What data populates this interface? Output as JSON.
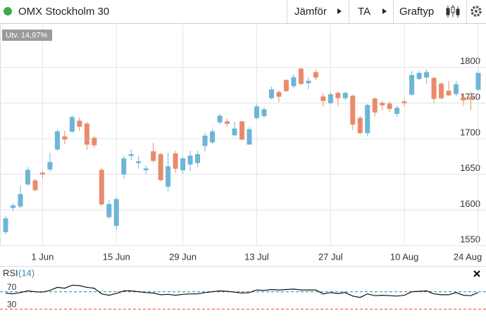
{
  "toolbar": {
    "title": "OMX Stockholm 30",
    "buttons": [
      "Jämför",
      "TA",
      "Graftyp"
    ]
  },
  "badge": "Utv. 14,97%",
  "chart_data": [
    {
      "type": "candlestick",
      "categories": [
        null,
        null,
        null,
        null,
        null,
        "1 Jun",
        null,
        null,
        null,
        null,
        null,
        null,
        null,
        null,
        null,
        "15 Jun",
        null,
        null,
        null,
        null,
        null,
        null,
        null,
        null,
        "29 Jun",
        null,
        null,
        null,
        null,
        null,
        null,
        null,
        null,
        null,
        "13 Jul",
        null,
        null,
        null,
        null,
        null,
        null,
        null,
        null,
        null,
        "27 Jul",
        null,
        null,
        null,
        null,
        null,
        null,
        null,
        null,
        null,
        "10 Aug",
        null,
        null,
        null,
        null,
        null,
        null,
        null,
        null,
        null,
        "24 Aug"
      ],
      "open": [
        1569,
        1603,
        1605,
        1636,
        1641,
        1652,
        1657,
        1685,
        1703,
        1710,
        1725,
        1721,
        1701,
        1656,
        1590,
        1578,
        1650,
        1676,
        1666,
        1656,
        1682,
        1678,
        1633,
        1679,
        1656,
        1664,
        1666,
        1690,
        1695,
        1723,
        1724,
        1705,
        1724,
        1692,
        1729,
        1732,
        1757,
        1765,
        1782,
        1774,
        1798,
        1778,
        1793,
        1759,
        1750,
        1764,
        1757,
        1760,
        1729,
        1708,
        1756,
        1750,
        1749,
        1735,
        1752,
        1762,
        1784,
        1786,
        1785,
        1777,
        1767,
        1763,
        1758,
        1758,
        1769
      ],
      "high": [
        1592,
        1609,
        1634,
        1660,
        1644,
        1654,
        1680,
        1713,
        1711,
        1733,
        1730,
        1723,
        1704,
        1659,
        1614,
        1618,
        1676,
        1685,
        1676,
        1662,
        1694,
        1680,
        1680,
        1683,
        1675,
        1683,
        1683,
        1708,
        1714,
        1735,
        1728,
        1724,
        1725,
        1716,
        1748,
        1744,
        1773,
        1768,
        1784,
        1790,
        1800,
        1786,
        1797,
        1764,
        1765,
        1766,
        1766,
        1762,
        1732,
        1749,
        1758,
        1753,
        1752,
        1747,
        1756,
        1795,
        1795,
        1797,
        1787,
        1779,
        1781,
        1781,
        1763,
        1766,
        1795
      ],
      "low": [
        1566,
        1598,
        1602,
        1634,
        1626,
        1644,
        1654,
        1683,
        1692,
        1708,
        1711,
        1684,
        1687,
        1606,
        1587,
        1572,
        1644,
        1670,
        1658,
        1650,
        1666,
        1640,
        1626,
        1652,
        1651,
        1654,
        1660,
        1682,
        1692,
        1720,
        1717,
        1704,
        1698,
        1691,
        1727,
        1729,
        1755,
        1751,
        1765,
        1771,
        1775,
        1769,
        1782,
        1745,
        1748,
        1746,
        1754,
        1712,
        1706,
        1703,
        1731,
        1739,
        1737,
        1731,
        1745,
        1760,
        1782,
        1777,
        1750,
        1755,
        1760,
        1760,
        1746,
        1740,
        1766
      ],
      "close": [
        1588,
        1606,
        1622,
        1656,
        1628,
        1650,
        1667,
        1710,
        1699,
        1730,
        1717,
        1692,
        1691,
        1608,
        1608,
        1615,
        1672,
        1678,
        1668,
        1658,
        1669,
        1642,
        1661,
        1658,
        1672,
        1676,
        1678,
        1704,
        1710,
        1732,
        1721,
        1714,
        1699,
        1713,
        1745,
        1741,
        1769,
        1759,
        1767,
        1786,
        1777,
        1781,
        1786,
        1753,
        1762,
        1757,
        1764,
        1720,
        1708,
        1747,
        1737,
        1747,
        1742,
        1743,
        1750,
        1789,
        1792,
        1793,
        1756,
        1757,
        1761,
        1776,
        1754,
        1755,
        1792
      ],
      "up_color": "#6db5d6",
      "down_color": "#ea8a6c",
      "ylim": [
        1550,
        1860
      ],
      "yticks": [
        1550,
        1600,
        1650,
        1700,
        1750,
        1800
      ],
      "grid": true
    },
    {
      "type": "line",
      "title": "RSI",
      "subtitle": "(14)",
      "values": [
        67,
        65,
        68,
        72,
        70,
        69,
        73,
        80,
        78,
        85,
        84,
        80,
        78,
        65,
        62,
        66,
        72,
        72,
        70,
        68,
        67,
        63,
        64,
        62,
        64,
        65,
        65,
        68,
        70,
        72,
        71,
        69,
        67,
        68,
        74,
        73,
        75,
        74,
        75,
        76,
        74,
        74,
        74,
        65,
        68,
        66,
        68,
        60,
        57,
        65,
        61,
        62,
        61,
        60,
        62,
        70,
        71,
        72,
        65,
        63,
        63,
        68,
        62,
        61,
        68
      ],
      "color": "#111111",
      "ylim": [
        0,
        100
      ],
      "yticks": [
        30,
        70
      ],
      "tick_colors": [
        "#e8704a",
        "#4f97c2"
      ]
    }
  ]
}
